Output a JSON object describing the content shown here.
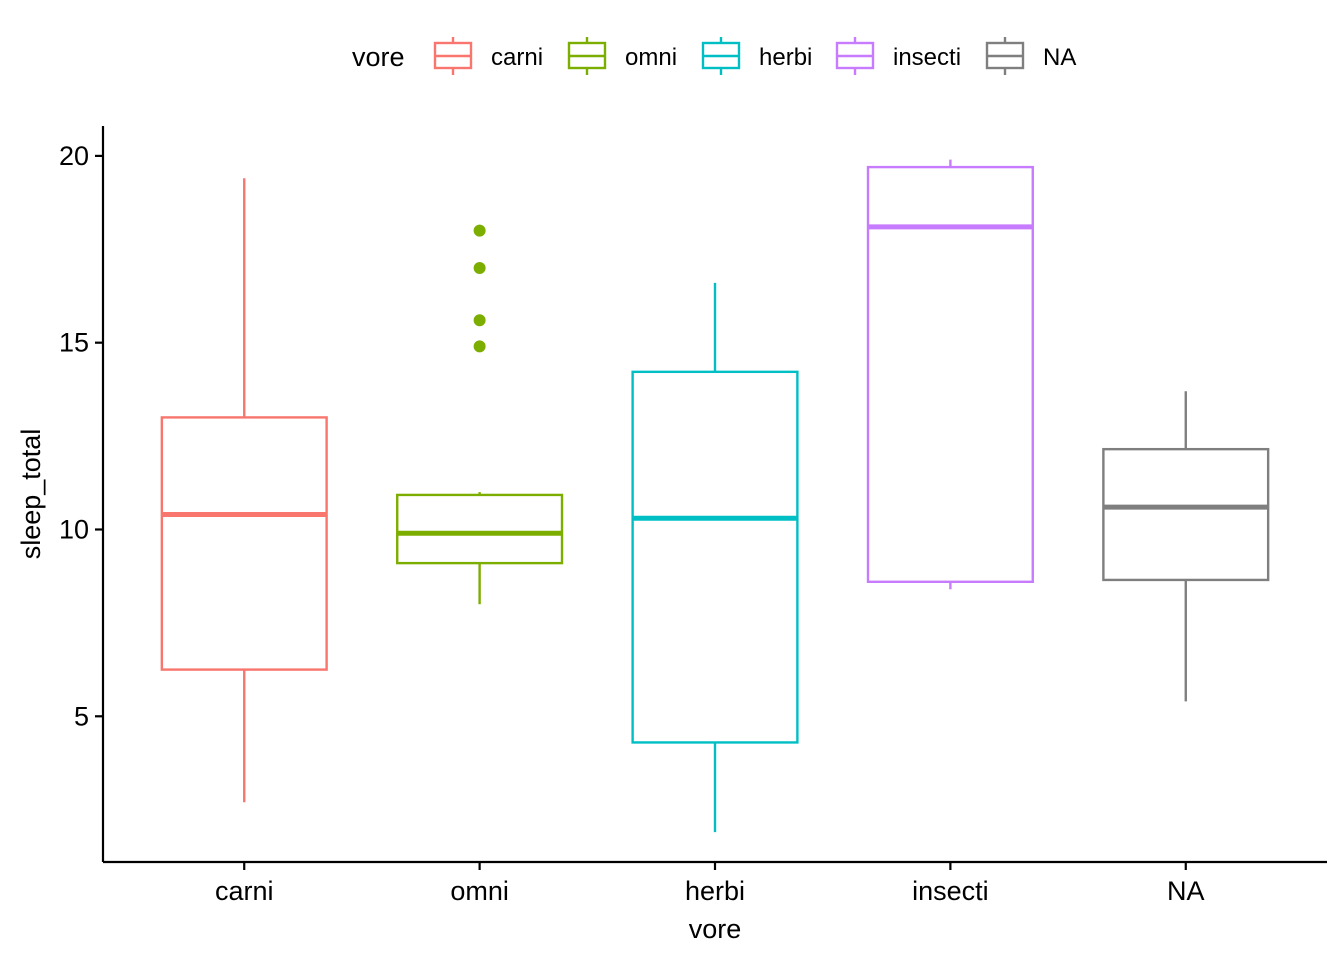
{
  "chart_data": {
    "type": "boxplot",
    "xlabel": "vore",
    "ylabel": "sleep_total",
    "categories": [
      "carni",
      "omni",
      "herbi",
      "insecti",
      "NA"
    ],
    "ylim": [
      1.1,
      20.8
    ],
    "yticks": [
      5,
      10,
      15,
      20
    ],
    "legend": {
      "title": "vore",
      "position": "top",
      "entries": [
        "carni",
        "omni",
        "herbi",
        "insecti",
        "NA"
      ]
    },
    "grid": false,
    "colors": {
      "carni": "#F8766D",
      "omni": "#7CAE00",
      "herbi": "#00BFC4",
      "insecti": "#C77CFF",
      "NA": "#7F7F7F"
    },
    "series": [
      {
        "category": "carni",
        "min": 2.7,
        "q1": 6.25,
        "median": 10.4,
        "q3": 13.0,
        "max": 19.4,
        "outliers": []
      },
      {
        "category": "omni",
        "min": 8.0,
        "q1": 9.1,
        "median": 9.9,
        "q3": 10.925,
        "max": 11.0,
        "outliers": [
          18.0,
          17.0,
          15.6,
          14.9
        ]
      },
      {
        "category": "herbi",
        "min": 1.9,
        "q1": 4.3,
        "median": 10.3,
        "q3": 14.22,
        "max": 16.6,
        "outliers": []
      },
      {
        "category": "insecti",
        "min": 8.4,
        "q1": 8.6,
        "median": 18.1,
        "q3": 19.7,
        "max": 19.9,
        "outliers": []
      },
      {
        "category": "NA",
        "min": 5.4,
        "q1": 8.65,
        "median": 10.6,
        "q3": 12.15,
        "max": 13.7,
        "outliers": []
      }
    ]
  }
}
